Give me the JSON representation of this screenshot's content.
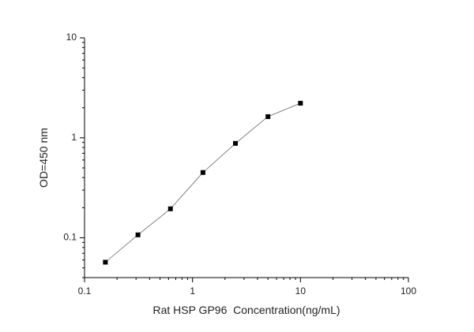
{
  "chart_data": {
    "type": "line",
    "x_label": "Rat HSP GP96  Concentration(ng/mL)",
    "y_label": "OD=450 nm",
    "x": [
      0.156,
      0.3125,
      0.625,
      1.25,
      2.5,
      5,
      10
    ],
    "series": [
      {
        "color": "#000000",
        "line_color": "#666666",
        "values": [
          0.057,
          0.107,
          0.195,
          0.45,
          0.88,
          1.63,
          2.22
        ]
      }
    ],
    "xlim": [
      0.1,
      100
    ],
    "xticks": [
      0.1,
      1,
      10,
      100
    ],
    "ylim": [
      0.04,
      10
    ],
    "yticks": [
      0.1,
      1,
      10
    ],
    "x_log": true,
    "y_log": true
  }
}
